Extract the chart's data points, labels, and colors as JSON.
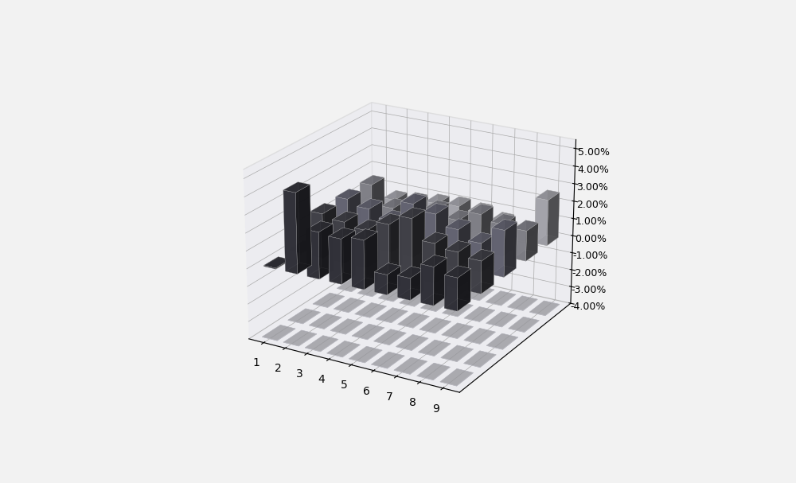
{
  "title": "",
  "x_labels": [
    "1",
    "2",
    "3",
    "4",
    "5",
    "6",
    "7",
    "8",
    "9"
  ],
  "n_series": 5,
  "z_values": [
    [
      0.05,
      4.5,
      2.6,
      2.5,
      2.7,
      1.1,
      1.2,
      2.1,
      1.8
    ],
    [
      0.1,
      2.5,
      2.3,
      2.1,
      2.7,
      3.3,
      2.2,
      2.0,
      1.8
    ],
    [
      0.1,
      2.5,
      2.2,
      1.8,
      3.0,
      2.7,
      2.1,
      1.6,
      2.6
    ],
    [
      0.15,
      2.5,
      1.4,
      2.0,
      1.8,
      1.5,
      2.1,
      1.8,
      1.7
    ],
    [
      0.2,
      0.8,
      0.8,
      1.1,
      1.2,
      1.1,
      0.8,
      0.1,
      2.6
    ]
  ],
  "bar_colors": [
    "#383840",
    "#484850",
    "#707080",
    "#909098",
    "#b8b8c0"
  ],
  "background_color": "#f2f2f2",
  "zlim": [
    -4.0,
    5.5
  ],
  "zticks": [
    -4.0,
    -3.0,
    -2.0,
    -1.0,
    0.0,
    1.0,
    2.0,
    3.0,
    4.0,
    5.0
  ],
  "grid_color": "#aaaaaa",
  "floor_color": "#d8d8e0",
  "floor_grid_color": "#b8b8c0",
  "wall_color": "#e8e8f0",
  "bar_width": 0.55,
  "bar_depth": 0.55,
  "elev": 22,
  "azim": -60
}
